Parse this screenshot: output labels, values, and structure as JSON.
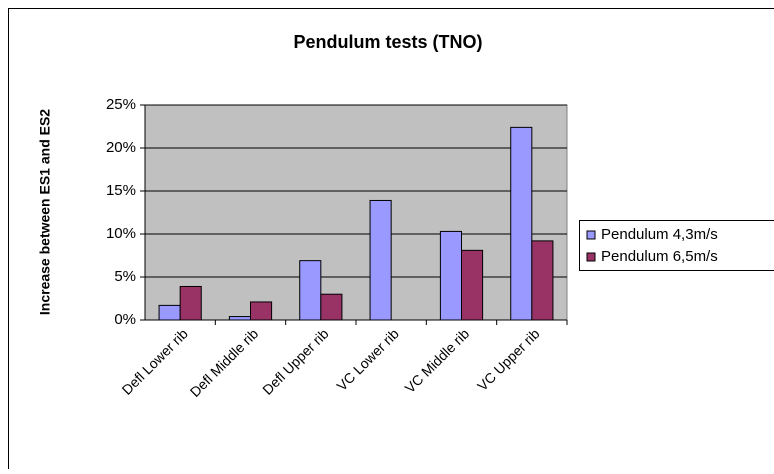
{
  "chart_data": {
    "type": "bar",
    "title": "Pendulum tests (TNO)",
    "y_label": "Increase between ES1 and ES2",
    "categories": [
      "Defl Lower rib",
      "Defl Middle rib",
      "Defl Upper rib",
      "VC Lower rib",
      "VC Middle rib",
      "VC Upper rib"
    ],
    "series": [
      {
        "name": "Pendulum 4,3m/s",
        "color": "#9999ff",
        "values": [
          1.7,
          0.4,
          6.9,
          13.9,
          10.3,
          22.4
        ]
      },
      {
        "name": "Pendulum 6,5m/s",
        "color": "#993366",
        "values": [
          3.9,
          2.1,
          3.0,
          null,
          8.1,
          9.2
        ]
      }
    ],
    "ylim": [
      0,
      25
    ],
    "yticks": [
      {
        "value": 0,
        "label": "0%"
      },
      {
        "value": 5,
        "label": "5%"
      },
      {
        "value": 10,
        "label": "10%"
      },
      {
        "value": 15,
        "label": "15%"
      },
      {
        "value": 20,
        "label": "20%"
      },
      {
        "value": 25,
        "label": "25%"
      }
    ],
    "grid": true,
    "legend": "right"
  }
}
